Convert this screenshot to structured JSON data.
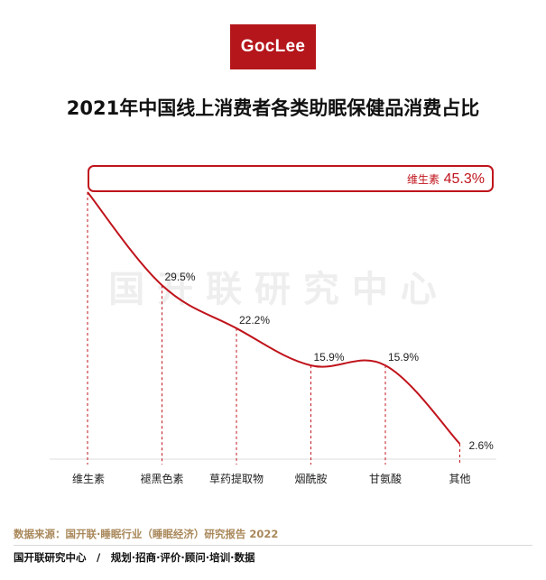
{
  "logo": {
    "text": "GocLee"
  },
  "title": "2021年中国线上消费者各类助眠保健品消费占比",
  "watermark": "国 开 联 研 究 中 心",
  "colors": {
    "accent": "#c0141c",
    "logo_bg": "#b4161b",
    "source": "#a9885a"
  },
  "chart_data": {
    "type": "line",
    "title": "2021年中国线上消费者各类助眠保健品消费占比",
    "xlabel": "",
    "ylabel": "",
    "categories": [
      "维生素",
      "褪黑色素",
      "草药提取物",
      "烟酰胺",
      "甘氨酸",
      "其他"
    ],
    "series": [
      {
        "values": [
          45.3,
          29.5,
          22.2,
          15.9,
          15.9,
          2.6
        ]
      }
    ],
    "value_labels": [
      "45.3%",
      "29.5%",
      "22.2%",
      "15.9%",
      "15.9%",
      "2.6%"
    ],
    "ylim": [
      0,
      45.3
    ],
    "grid": false,
    "legend": "none",
    "highlight": {
      "category": "维生素",
      "value": "45.3%"
    }
  },
  "source": "数据来源：国开联·睡眠行业（睡眠经济）研究报告 2022",
  "footer": "国开联研究中心　/　规划·招商·评价·顾问·培训·数据"
}
